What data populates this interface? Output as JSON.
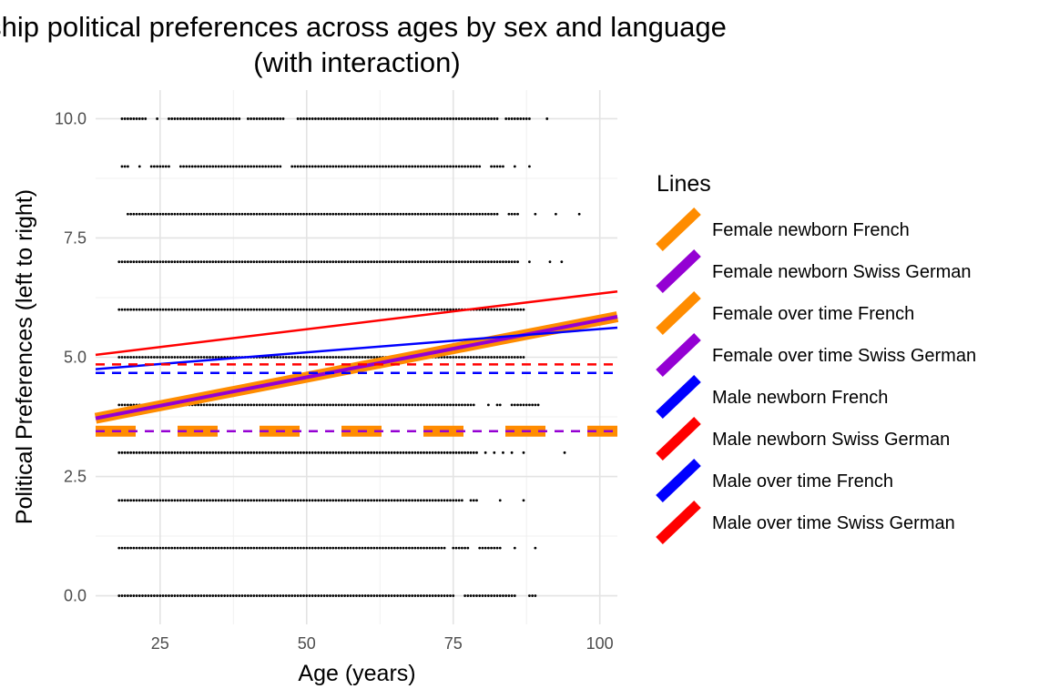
{
  "chart_data": {
    "type": "scatter",
    "title_line1": "ship political preferences across ages by sex and language",
    "title_line2": "(with interaction)",
    "xlabel": "Age (years)",
    "ylabel": "Political Preferences (left to right)",
    "xlim": [
      14,
      103
    ],
    "ylim": [
      -0.6,
      10.6
    ],
    "x_ticks": [
      {
        "value": 25,
        "label": "25"
      },
      {
        "value": 50,
        "label": "50"
      },
      {
        "value": 75,
        "label": "75"
      },
      {
        "value": 100,
        "label": "100"
      }
    ],
    "y_ticks": [
      {
        "value": 0,
        "label": "0.0"
      },
      {
        "value": 2.5,
        "label": "2.5"
      },
      {
        "value": 5,
        "label": "5.0"
      },
      {
        "value": 7.5,
        "label": "7.5"
      },
      {
        "value": 10,
        "label": "10.0"
      }
    ],
    "grid": true,
    "points": [
      {
        "y": 10,
        "segments": [
          [
            18.5,
            22.5
          ],
          [
            24.5,
            24.5
          ],
          [
            26.5,
            38.5
          ],
          [
            40,
            46
          ],
          [
            48.5,
            82.5
          ],
          [
            84,
            88
          ],
          [
            91,
            91
          ]
        ]
      },
      {
        "y": 9,
        "segments": [
          [
            18.5,
            19.5
          ],
          [
            21.5,
            21.5
          ],
          [
            23.5,
            26.5
          ],
          [
            28.5,
            45.5
          ],
          [
            47.5,
            79.5
          ],
          [
            81.5,
            83.5
          ],
          [
            85.5,
            85.5
          ],
          [
            88,
            88
          ]
        ]
      },
      {
        "y": 8,
        "segments": [
          [
            19.5,
            82.5
          ],
          [
            84.5,
            86
          ],
          [
            89,
            89
          ],
          [
            92.5,
            92.5
          ],
          [
            96.5,
            96.5
          ]
        ]
      },
      {
        "y": 7,
        "segments": [
          [
            18,
            86
          ],
          [
            88,
            88
          ],
          [
            91.5,
            91.5
          ],
          [
            93.5,
            93.5
          ]
        ]
      },
      {
        "y": 6,
        "segments": [
          [
            18,
            87
          ]
        ]
      },
      {
        "y": 5,
        "segments": [
          [
            18,
            87
          ]
        ]
      },
      {
        "y": 4,
        "segments": [
          [
            18,
            78.5
          ],
          [
            81,
            81
          ],
          [
            82.5,
            83
          ],
          [
            85,
            89.5
          ]
        ]
      },
      {
        "y": 3,
        "segments": [
          [
            18,
            79
          ],
          [
            80.5,
            80.5
          ],
          [
            82,
            82
          ],
          [
            83.5,
            83.5
          ],
          [
            85,
            85
          ],
          [
            87,
            87
          ],
          [
            94,
            94
          ]
        ]
      },
      {
        "y": 2,
        "segments": [
          [
            18,
            76.5
          ],
          [
            78,
            79
          ],
          [
            83,
            83
          ],
          [
            87,
            87
          ]
        ]
      },
      {
        "y": 1,
        "segments": [
          [
            18,
            73.5
          ],
          [
            75,
            77.5
          ],
          [
            79.5,
            83
          ],
          [
            85.5,
            85.5
          ],
          [
            89,
            89
          ]
        ]
      },
      {
        "y": 0,
        "segments": [
          [
            18,
            75
          ],
          [
            77,
            85.5
          ],
          [
            88,
            89
          ]
        ]
      }
    ],
    "series": [
      {
        "name": "Female newborn French",
        "color": "#FF8C00",
        "width": 12,
        "dash": "",
        "x": [
          14,
          103
        ],
        "y": [
          3.72,
          5.85
        ]
      },
      {
        "name": "Female newborn Swiss German",
        "color": "#9400D3",
        "width": 4,
        "dash": "",
        "x": [
          14,
          103
        ],
        "y": [
          3.72,
          5.85
        ]
      },
      {
        "name": "Female over time French",
        "color": "#FF8C00",
        "width": 12,
        "dash": "44 46",
        "x": [
          14,
          103
        ],
        "y": [
          3.45,
          3.45
        ]
      },
      {
        "name": "Female over time Swiss German",
        "color": "#9400D3",
        "width": 2.5,
        "dash": "10 8",
        "x": [
          14,
          103
        ],
        "y": [
          3.45,
          3.45
        ]
      },
      {
        "name": "Male newborn French",
        "color": "#0000FF",
        "width": 2.5,
        "dash": "",
        "x": [
          14,
          103
        ],
        "y": [
          4.75,
          5.62
        ]
      },
      {
        "name": "Male newborn Swiss German",
        "color": "#FF0000",
        "width": 2.5,
        "dash": "",
        "x": [
          14,
          103
        ],
        "y": [
          5.05,
          6.38
        ]
      },
      {
        "name": "Male over time French",
        "color": "#0000FF",
        "width": 2.5,
        "dash": "10 8",
        "x": [
          14,
          103
        ],
        "y": [
          4.67,
          4.67
        ]
      },
      {
        "name": "Male over time Swiss German",
        "color": "#FF0000",
        "width": 2.5,
        "dash": "10 8",
        "x": [
          14,
          103
        ],
        "y": [
          4.85,
          4.85
        ]
      }
    ],
    "legend": {
      "title": "Lines",
      "placement": "right",
      "items": [
        {
          "label": "Female newborn French",
          "color": "#FF8C00"
        },
        {
          "label": "Female newborn Swiss German",
          "color": "#9400D3"
        },
        {
          "label": "Female over time French",
          "color": "#FF8C00"
        },
        {
          "label": "Female over time Swiss German",
          "color": "#9400D3"
        },
        {
          "label": "Male newborn French",
          "color": "#0000FF"
        },
        {
          "label": "Male newborn Swiss German",
          "color": "#FF0000"
        },
        {
          "label": "Male over time French",
          "color": "#0000FF"
        },
        {
          "label": "Male over time Swiss German",
          "color": "#FF0000"
        }
      ]
    }
  }
}
